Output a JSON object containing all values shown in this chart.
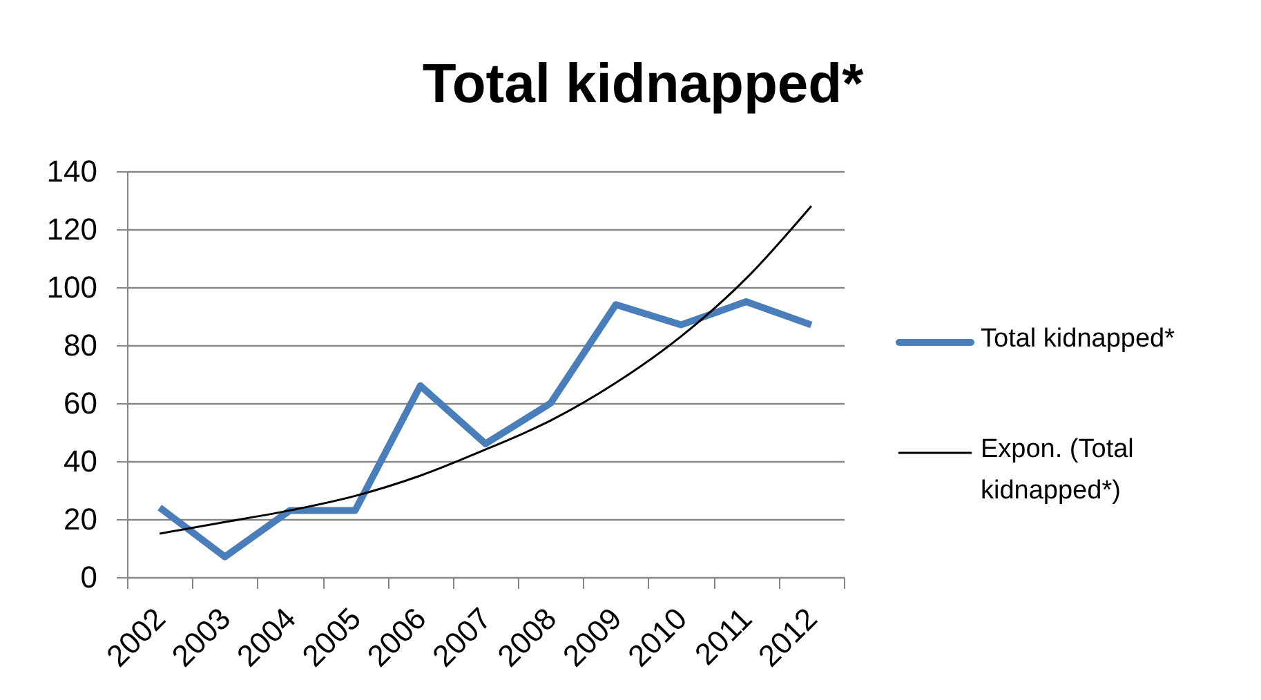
{
  "chart_data": {
    "type": "line",
    "title": "Total kidnapped*",
    "categories": [
      "2002",
      "2003",
      "2004",
      "2005",
      "2006",
      "2007",
      "2008",
      "2009",
      "2010",
      "2011",
      "2012"
    ],
    "series": [
      {
        "name": "Total kidnapped*",
        "color": "#4a7ebb",
        "values": [
          24,
          7,
          23,
          23,
          66,
          46,
          60,
          94,
          87,
          95,
          87
        ]
      },
      {
        "name": "Expon. (Total kidnapped*)",
        "type": "line",
        "color": "#000000",
        "values": [
          15,
          19,
          23,
          28,
          35,
          44,
          54,
          67,
          83,
          103,
          128
        ]
      }
    ],
    "ylim": [
      0,
      140
    ],
    "yticks": [
      0,
      20,
      40,
      60,
      80,
      100,
      120,
      140
    ],
    "grid": "y",
    "legend": "right"
  }
}
